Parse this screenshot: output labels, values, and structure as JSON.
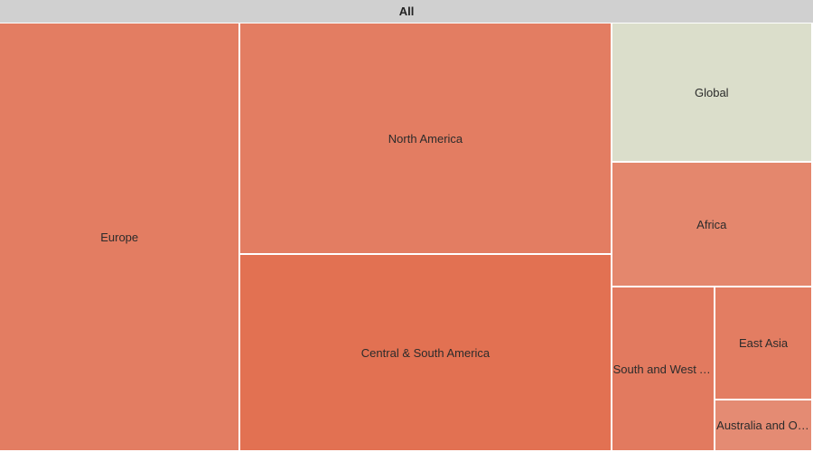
{
  "breadcrumb": {
    "label": "All"
  },
  "chart_data": {
    "type": "treemap",
    "title": "",
    "root": "All",
    "regions": [
      {
        "name": "Europe",
        "size": 103,
        "color": "#e37d62"
      },
      {
        "name": "North America",
        "size": 86,
        "color": "#e37d62"
      },
      {
        "name": "Central & South America",
        "size": 73,
        "color": "#e27152"
      },
      {
        "name": "Global",
        "size": 28,
        "color": "#dbdecb"
      },
      {
        "name": "Africa",
        "size": 25,
        "color": "#e4876d"
      },
      {
        "name": "South and West Asia",
        "size": 17,
        "color": "#e27a5f"
      },
      {
        "name": "East Asia",
        "size": 11,
        "color": "#e37d62"
      },
      {
        "name": "Australia and Oceania",
        "size": 5,
        "color": "#e48b73"
      }
    ]
  }
}
